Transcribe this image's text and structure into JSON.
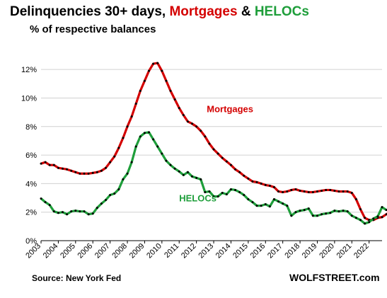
{
  "header": {
    "title_prefix": "Delinquencies 30+ days, ",
    "title_mortgages": "Mortgages",
    "title_amp": " & ",
    "title_helocs": "HELOCs",
    "subtitle": "% of respective balances"
  },
  "footer": {
    "source": "Source: New York Fed",
    "brand": "WOLFSTREET.com"
  },
  "colors": {
    "mortgages": "#d40000",
    "helocs": "#1e9e3a",
    "markers": "#000000",
    "grid": "#d0d0d0"
  },
  "chart_data": {
    "type": "line",
    "title": "Delinquencies 30+ days, Mortgages & HELOCs",
    "subtitle": "% of respective balances",
    "xlabel": "",
    "ylabel": "",
    "xlim": [
      2003,
      2022.75
    ],
    "ylim": [
      0,
      13
    ],
    "grid": true,
    "y_ticks": [
      {
        "value": 0,
        "label": "0%"
      },
      {
        "value": 2,
        "label": "2%"
      },
      {
        "value": 4,
        "label": "4%"
      },
      {
        "value": 6,
        "label": "6%"
      },
      {
        "value": 8,
        "label": "8%"
      },
      {
        "value": 10,
        "label": "10%"
      },
      {
        "value": 12,
        "label": "12%"
      }
    ],
    "x_ticks": [
      "2003",
      "2004",
      "2005",
      "2006",
      "2007",
      "2008",
      "2009",
      "2010",
      "2011",
      "2012",
      "2013",
      "2014",
      "2015",
      "2016",
      "2017",
      "2018",
      "2019",
      "2020",
      "2021",
      "2022"
    ],
    "annotations": [
      {
        "text": "Mortgages",
        "series": "Mortgages",
        "x": 2012.6,
        "y": 9.0
      },
      {
        "text": "HELOCs",
        "series": "HELOCs",
        "x": 2011.0,
        "y": 2.75
      }
    ],
    "series": [
      {
        "name": "Mortgages",
        "x_start": 2003,
        "step": 0.25,
        "values": [
          5.4,
          5.5,
          5.3,
          5.3,
          5.1,
          5.05,
          5.0,
          4.9,
          4.8,
          4.7,
          4.7,
          4.7,
          4.75,
          4.8,
          4.9,
          5.1,
          5.5,
          5.9,
          6.5,
          7.2,
          8.0,
          8.7,
          9.6,
          10.5,
          11.2,
          11.9,
          12.4,
          12.45,
          11.9,
          11.2,
          10.5,
          9.9,
          9.3,
          8.8,
          8.35,
          8.2,
          8.0,
          7.7,
          7.3,
          6.8,
          6.4,
          6.1,
          5.8,
          5.55,
          5.3,
          5.0,
          4.8,
          4.55,
          4.35,
          4.15,
          4.1,
          4.0,
          3.9,
          3.85,
          3.75,
          3.45,
          3.4,
          3.45,
          3.55,
          3.6,
          3.5,
          3.45,
          3.4,
          3.4,
          3.45,
          3.5,
          3.55,
          3.55,
          3.5,
          3.45,
          3.45,
          3.45,
          3.35,
          2.9,
          2.2,
          1.6,
          1.45,
          1.45,
          1.6,
          1.65,
          1.85,
          2.05
        ]
      },
      {
        "name": "HELOCs",
        "x_start": 2003,
        "step": 0.25,
        "values": [
          2.95,
          2.7,
          2.5,
          2.05,
          1.95,
          2.0,
          1.85,
          2.05,
          2.1,
          2.05,
          2.05,
          1.85,
          1.9,
          2.3,
          2.6,
          2.85,
          3.2,
          3.3,
          3.6,
          4.3,
          4.7,
          5.5,
          6.6,
          7.3,
          7.55,
          7.6,
          7.1,
          6.6,
          6.1,
          5.6,
          5.3,
          5.05,
          4.85,
          4.6,
          4.8,
          4.5,
          4.4,
          4.3,
          3.4,
          3.45,
          3.1,
          3.1,
          3.35,
          3.25,
          3.6,
          3.55,
          3.4,
          3.2,
          2.9,
          2.7,
          2.45,
          2.45,
          2.55,
          2.4,
          2.9,
          2.75,
          2.6,
          2.45,
          1.75,
          2.0,
          2.1,
          2.15,
          2.25,
          1.75,
          1.75,
          1.85,
          1.9,
          1.95,
          2.1,
          2.05,
          2.1,
          2.05,
          1.75,
          1.6,
          1.45,
          1.2,
          1.3,
          1.55,
          1.7,
          2.35,
          2.15
        ]
      }
    ]
  }
}
